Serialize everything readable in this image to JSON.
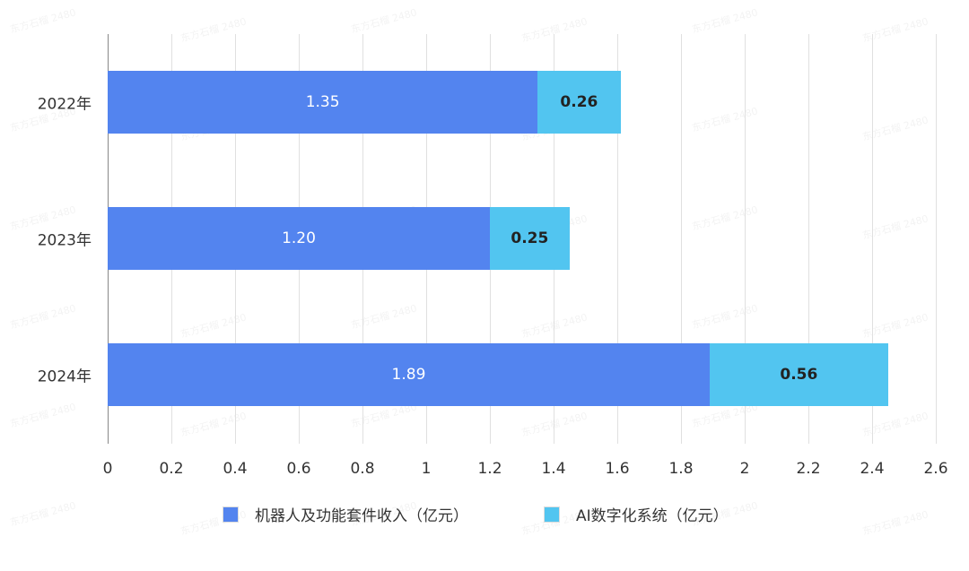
{
  "chart_data": {
    "type": "bar",
    "orientation": "horizontal",
    "stacked": true,
    "title": "",
    "xlabel": "",
    "ylabel": "",
    "categories": [
      "2022年",
      "2023年",
      "2024年"
    ],
    "series": [
      {
        "name": "机器人及功能套件收入（亿元）",
        "values": [
          1.35,
          1.2,
          1.89
        ],
        "color": "#5384ef",
        "labels": [
          "1.35",
          "1.20",
          "1.89"
        ]
      },
      {
        "name": "AI数字化系统（亿元）",
        "values": [
          0.26,
          0.25,
          0.56
        ],
        "color": "#52c5f0",
        "labels": [
          "0.26",
          "0.25",
          "0.56"
        ]
      }
    ],
    "xlim": [
      0,
      2.6
    ],
    "xticks": [
      "0",
      "0.2",
      "0.4",
      "0.6",
      "0.8",
      "1",
      "1.2",
      "1.4",
      "1.6",
      "1.8",
      "2",
      "2.2",
      "2.4",
      "2.6"
    ],
    "grid": true,
    "legend_position": "bottom"
  },
  "watermark": "东方石榴 2480"
}
